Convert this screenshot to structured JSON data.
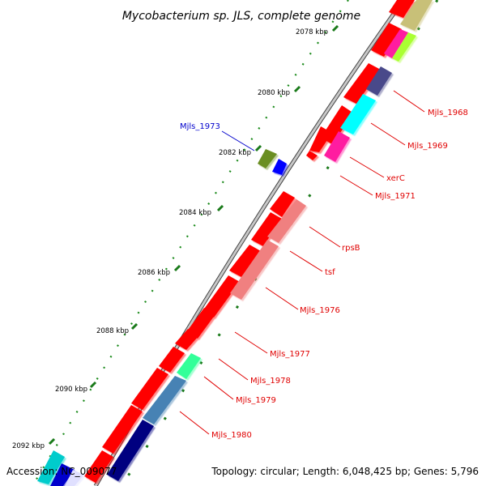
{
  "title": "Mycobacterium sp. JLS, complete genome",
  "footer": {
    "accession": "Accession: NC_009077",
    "topology": "Topology: circular; Length: 6,048,425 bp; Genes: 5,796"
  },
  "ticks": [
    "2078 kbp",
    "2080 kbp",
    "2082 kbp",
    "2084 kbp",
    "2086 kbp",
    "2088 kbp",
    "2090 kbp",
    "2092 kbp"
  ],
  "gene_labels": {
    "mjls_1968": "Mjls_1968",
    "mjls_1969": "Mjls_1969",
    "xerc": "xerC",
    "mjls_1971": "Mjls_1971",
    "mjls_1973": "Mjls_1973",
    "rpsb": "rpsB",
    "tsf": "tsf",
    "mjls_1976": "Mjls_1976",
    "mjls_1977": "Mjls_1977",
    "mjls_1978": "Mjls_1978",
    "mjls_1979": "Mjls_1979",
    "mjls_1980": "Mjls_1980"
  },
  "colors": {
    "forward_cds": "#ff0000",
    "backbone": "#888888",
    "tick_mark": "#1a7a1a",
    "label_red": "#e00000",
    "label_blue": "#0000cc"
  }
}
